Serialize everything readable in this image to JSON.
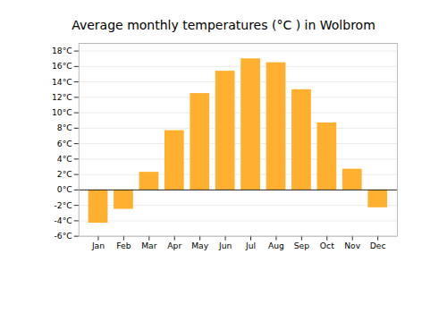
{
  "chart_data": {
    "type": "bar",
    "title": "Average monthly temperatures (°C ) in Wolbrom",
    "categories": [
      "Jan",
      "Feb",
      "Mar",
      "Apr",
      "May",
      "Jun",
      "Jul",
      "Aug",
      "Sep",
      "Oct",
      "Nov",
      "Dec"
    ],
    "values": [
      -4.3,
      -2.5,
      2.3,
      7.7,
      12.5,
      15.4,
      17.0,
      16.5,
      13.0,
      8.7,
      2.7,
      -2.3
    ],
    "color": "#FFB030",
    "ylim": [
      -6,
      19
    ],
    "yticks": [
      {
        "value": -6,
        "label": "-6°C"
      },
      {
        "value": -4,
        "label": "-4°C"
      },
      {
        "value": -2,
        "label": "-2°C"
      },
      {
        "value": 0,
        "label": "0°C"
      },
      {
        "value": 2,
        "label": "2°C"
      },
      {
        "value": 4,
        "label": "4°C"
      },
      {
        "value": 6,
        "label": "6°C"
      },
      {
        "value": 8,
        "label": "8°C"
      },
      {
        "value": 10,
        "label": "10°C"
      },
      {
        "value": 12,
        "label": "12°C"
      },
      {
        "value": 14,
        "label": "14°C"
      },
      {
        "value": 16,
        "label": "16°C"
      },
      {
        "value": 18,
        "label": "18°C"
      }
    ],
    "grid": true
  }
}
